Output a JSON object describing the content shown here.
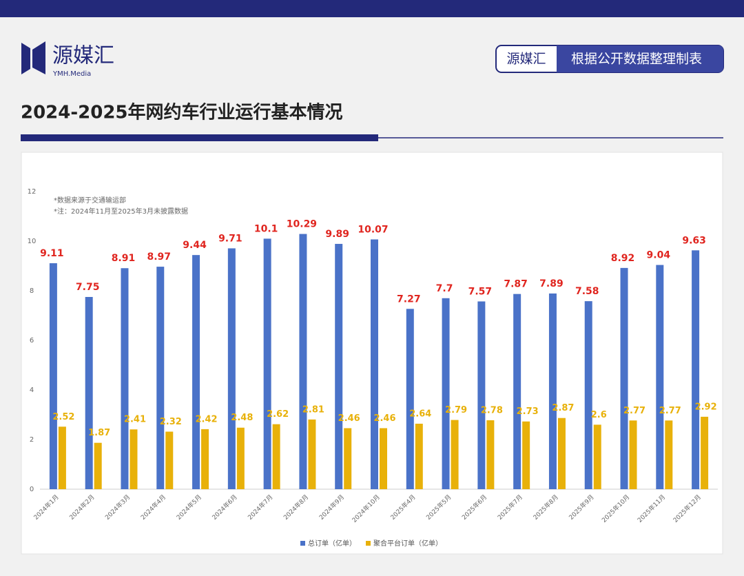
{
  "header": {
    "logo": "源媒汇",
    "logo_sub": "YMH.Media",
    "badge_brand": "源媒汇",
    "badge_text": "根据公开数据整理制表",
    "title": "2024-2025年网约车行业运行基本情况"
  },
  "chart_data": {
    "type": "bar",
    "notes": [
      "*数据来源于交通输运部",
      "*注：2024年11月至2025年3月未披露数据"
    ],
    "categories": [
      "2024年1月",
      "2024年2月",
      "2024年3月",
      "2024年4月",
      "2024年5月",
      "2024年6月",
      "2024年7月",
      "2024年8月",
      "2024年9月",
      "2024年10月",
      "2025年4月",
      "2025年5月",
      "2025年6月",
      "2025年7月",
      "2025年8月",
      "2025年9月",
      "2025年10月",
      "2025年11月",
      "2025年12月"
    ],
    "series": [
      {
        "name": "总订单（亿单）",
        "color": "#4a72c8",
        "label_color": "#e0251f",
        "values": [
          9.11,
          7.75,
          8.91,
          8.97,
          9.44,
          9.71,
          10.1,
          10.29,
          9.89,
          10.07,
          7.27,
          7.7,
          7.57,
          7.87,
          7.89,
          7.58,
          8.92,
          9.04,
          9.63
        ]
      },
      {
        "name": "聚合平台订单（亿单）",
        "color": "#e8b10a",
        "label_color": "#e8b10a",
        "values": [
          2.52,
          1.87,
          2.41,
          2.32,
          2.42,
          2.48,
          2.62,
          2.81,
          2.46,
          2.46,
          2.64,
          2.79,
          2.78,
          2.73,
          2.87,
          2.6,
          2.77,
          2.77,
          2.92
        ]
      }
    ],
    "ylim": [
      0,
      12
    ],
    "yticks": [
      0,
      2,
      4,
      6,
      8,
      10,
      12
    ],
    "grid": false,
    "legend": "bottom"
  }
}
